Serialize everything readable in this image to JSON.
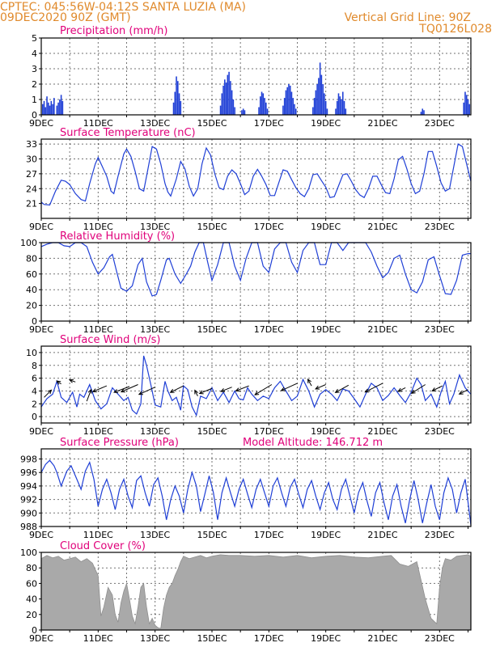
{
  "header": {
    "line1_left": "CPTEC:   045:56W-04:12S   SANTA LUZIA (MA)",
    "line2_left": "09DEC2020 90Z (GMT)",
    "line1_right": "Vertical Grid Line: 90Z",
    "line2_right": "TQ0126L028"
  },
  "colors": {
    "header": "#e08a2c",
    "panel_title": "#e0007a",
    "series": "#1f3fd6",
    "cloud": "#a9a9a9",
    "wind_arrow": "#000000"
  },
  "x_axis": {
    "ticks": [
      "9DEC",
      "11DEC",
      "13DEC",
      "15DEC",
      "17DEC",
      "19DEC",
      "21DEC",
      "23DEC"
    ],
    "start_day": 9,
    "end_day": 24.1
  },
  "chart_data": [
    {
      "id": "precip",
      "type": "bar",
      "title": "Precipitation (mm/h)",
      "ylim": [
        0,
        5
      ],
      "yticks": [
        0,
        1,
        2,
        3,
        4,
        5
      ],
      "grid": true,
      "x_unit": "day of December 2020",
      "x": [
        9.05,
        9.1,
        9.15,
        9.2,
        9.25,
        9.3,
        9.35,
        9.4,
        9.45,
        9.55,
        9.6,
        9.65,
        9.7,
        9.75,
        13.65,
        13.7,
        13.75,
        13.8,
        13.85,
        13.9,
        15.3,
        15.35,
        15.4,
        15.45,
        15.5,
        15.55,
        15.6,
        15.65,
        15.7,
        15.75,
        15.8,
        16.05,
        16.1,
        16.15,
        16.65,
        16.7,
        16.75,
        16.8,
        16.85,
        16.9,
        16.95,
        17.5,
        17.55,
        17.6,
        17.65,
        17.7,
        17.75,
        17.8,
        17.85,
        17.9,
        17.95,
        18.55,
        18.6,
        18.65,
        18.7,
        18.75,
        18.8,
        18.85,
        18.9,
        18.95,
        19.0,
        19.05,
        19.35,
        19.4,
        19.45,
        19.5,
        19.55,
        19.6,
        19.65,
        19.7,
        22.35,
        22.4,
        22.45,
        23.85,
        23.9,
        23.95,
        24.0,
        24.05
      ],
      "values": [
        0.7,
        0.9,
        0.5,
        1.2,
        0.8,
        0.6,
        0.9,
        0.7,
        1.1,
        0.6,
        0.8,
        1.0,
        1.3,
        0.9,
        0.8,
        1.5,
        2.5,
        2.2,
        1.4,
        0.9,
        0.6,
        1.4,
        1.9,
        2.3,
        2.1,
        2.6,
        2.8,
        2.2,
        1.6,
        1.0,
        0.5,
        0.3,
        0.4,
        0.3,
        0.5,
        1.2,
        1.5,
        1.4,
        1.1,
        0.8,
        0.4,
        0.6,
        1.1,
        1.6,
        1.8,
        2.0,
        1.9,
        1.5,
        1.1,
        0.7,
        0.4,
        0.5,
        1.1,
        1.6,
        2.0,
        2.4,
        3.4,
        2.6,
        2.0,
        1.4,
        0.9,
        0.4,
        0.4,
        0.9,
        1.4,
        1.2,
        1.0,
        1.5,
        0.9,
        0.4,
        0.2,
        0.4,
        0.3,
        0.8,
        1.5,
        1.3,
        1.0,
        0.7
      ]
    },
    {
      "id": "temperature",
      "type": "line",
      "title": "Surface Temperature (nC)",
      "ylim": [
        18,
        34
      ],
      "yticks": [
        21,
        24,
        27,
        30,
        33
      ],
      "grid": true,
      "x_unit": "day of December 2020",
      "x": [
        9.0,
        9.1,
        9.3,
        9.5,
        9.7,
        9.85,
        10.0,
        10.2,
        10.4,
        10.55,
        10.7,
        10.9,
        11.0,
        11.3,
        11.45,
        11.55,
        11.7,
        11.9,
        12.0,
        12.15,
        12.3,
        12.45,
        12.6,
        12.75,
        12.9,
        13.05,
        13.2,
        13.35,
        13.45,
        13.55,
        13.75,
        13.9,
        14.05,
        14.2,
        14.35,
        14.5,
        14.65,
        14.8,
        14.95,
        15.1,
        15.25,
        15.4,
        15.55,
        15.7,
        15.85,
        16.0,
        16.15,
        16.3,
        16.45,
        16.6,
        16.75,
        16.9,
        17.05,
        17.2,
        17.35,
        17.5,
        17.65,
        17.8,
        17.95,
        18.1,
        18.25,
        18.4,
        18.55,
        18.7,
        18.85,
        19.0,
        19.15,
        19.3,
        19.45,
        19.6,
        19.75,
        19.9,
        20.05,
        20.2,
        20.35,
        20.5,
        20.65,
        20.8,
        20.95,
        21.1,
        21.25,
        21.4,
        21.55,
        21.7,
        21.85,
        22.0,
        22.15,
        22.3,
        22.45,
        22.6,
        22.75,
        22.9,
        23.05,
        23.2,
        23.35,
        23.5,
        23.65,
        23.8,
        23.95,
        24.1
      ],
      "values": [
        21.3,
        20.8,
        20.7,
        23.5,
        25.7,
        25.5,
        24.8,
        23.0,
        21.8,
        21.5,
        25.0,
        29.0,
        30.3,
        26.5,
        23.5,
        23.0,
        26.5,
        31.0,
        32.0,
        30.5,
        27.5,
        24.0,
        23.5,
        28.0,
        32.5,
        32.0,
        29.0,
        25.0,
        23.3,
        22.5,
        26.0,
        29.5,
        28.0,
        24.5,
        22.5,
        24.0,
        29.0,
        32.2,
        30.8,
        27.0,
        24.2,
        23.8,
        26.5,
        27.8,
        27.0,
        25.0,
        22.8,
        23.5,
        26.5,
        27.9,
        26.5,
        24.8,
        22.6,
        22.6,
        25.2,
        27.8,
        27.5,
        25.8,
        24.2,
        23.0,
        22.4,
        24.0,
        26.8,
        27.0,
        25.6,
        24.3,
        22.2,
        22.4,
        24.6,
        26.8,
        27.0,
        25.5,
        23.8,
        22.7,
        22.2,
        24.0,
        26.5,
        26.5,
        24.8,
        23.2,
        23.0,
        26.0,
        29.8,
        30.5,
        28.0,
        25.0,
        23.0,
        23.5,
        27.0,
        31.5,
        31.5,
        28.5,
        25.2,
        23.5,
        24.0,
        28.5,
        33.0,
        32.5,
        29.0,
        25.5
      ]
    },
    {
      "id": "humidity",
      "type": "line",
      "title": "Relative Humidity (%)",
      "ylim": [
        0,
        100
      ],
      "yticks": [
        0,
        20,
        40,
        60,
        80,
        100
      ],
      "grid": true,
      "x_unit": "day of December 2020",
      "x": [
        9.0,
        9.2,
        9.4,
        9.6,
        9.8,
        10.0,
        10.2,
        10.4,
        10.6,
        10.8,
        11.0,
        11.2,
        11.4,
        11.5,
        11.65,
        11.8,
        12.0,
        12.2,
        12.4,
        12.55,
        12.7,
        12.9,
        13.05,
        13.2,
        13.4,
        13.5,
        13.7,
        13.9,
        14.1,
        14.25,
        14.4,
        14.55,
        14.7,
        14.85,
        15.0,
        15.2,
        15.4,
        15.6,
        15.8,
        16.0,
        16.2,
        16.4,
        16.6,
        16.8,
        17.0,
        17.2,
        17.4,
        17.6,
        17.8,
        18.0,
        18.2,
        18.4,
        18.6,
        18.8,
        19.0,
        19.2,
        19.4,
        19.6,
        19.8,
        20.0,
        20.2,
        20.4,
        20.6,
        20.8,
        21.0,
        21.2,
        21.4,
        21.6,
        21.8,
        22.0,
        22.2,
        22.4,
        22.6,
        22.8,
        23.0,
        23.2,
        23.4,
        23.6,
        23.8,
        24.0,
        24.1
      ],
      "values": [
        95,
        98,
        100,
        100,
        96,
        95,
        100,
        100,
        95,
        75,
        60,
        68,
        82,
        85,
        63,
        42,
        38,
        45,
        72,
        80,
        50,
        32,
        34,
        52,
        78,
        80,
        60,
        48,
        60,
        70,
        88,
        100,
        100,
        75,
        52,
        72,
        100,
        100,
        70,
        52,
        80,
        100,
        100,
        70,
        62,
        92,
        100,
        100,
        75,
        62,
        90,
        100,
        100,
        72,
        72,
        100,
        100,
        90,
        100,
        100,
        100,
        100,
        88,
        70,
        55,
        62,
        80,
        84,
        60,
        40,
        36,
        50,
        78,
        82,
        58,
        35,
        34,
        52,
        84,
        86,
        86
      ]
    },
    {
      "id": "wind",
      "type": "line",
      "title": "Surface Wind (m/s)",
      "ylim": [
        -1,
        11
      ],
      "yticks": [
        0,
        2,
        4,
        6,
        8,
        10
      ],
      "grid": true,
      "x_unit": "day of December 2020",
      "x": [
        9.0,
        9.2,
        9.4,
        9.55,
        9.7,
        9.9,
        10.1,
        10.25,
        10.35,
        10.5,
        10.7,
        10.9,
        11.1,
        11.3,
        11.5,
        11.7,
        11.9,
        12.05,
        12.2,
        12.35,
        12.5,
        12.6,
        12.7,
        12.85,
        13.0,
        13.2,
        13.35,
        13.45,
        13.6,
        13.75,
        13.9,
        14.0,
        14.15,
        14.3,
        14.45,
        14.6,
        14.8,
        15.0,
        15.2,
        15.4,
        15.6,
        15.8,
        15.95,
        16.1,
        16.25,
        16.4,
        16.6,
        16.8,
        17.0,
        17.2,
        17.4,
        17.6,
        17.8,
        18.0,
        18.2,
        18.4,
        18.6,
        18.8,
        19.0,
        19.2,
        19.4,
        19.6,
        19.8,
        20.0,
        20.2,
        20.4,
        20.6,
        20.8,
        21.0,
        21.2,
        21.4,
        21.6,
        21.8,
        22.0,
        22.2,
        22.35,
        22.5,
        22.7,
        22.9,
        23.05,
        23.2,
        23.35,
        23.5,
        23.7,
        23.9,
        24.1
      ],
      "values": [
        1.5,
        2.8,
        3.5,
        5.5,
        3.0,
        2.2,
        3.8,
        1.5,
        3.5,
        3.0,
        5.0,
        2.5,
        1.2,
        2.0,
        4.5,
        3.5,
        2.5,
        3.0,
        1.0,
        0.4,
        2.0,
        9.5,
        8.0,
        5.0,
        1.8,
        1.5,
        5.5,
        4.0,
        2.5,
        3.0,
        1.0,
        4.8,
        4.2,
        1.5,
        0.2,
        3.2,
        2.8,
        4.5,
        2.5,
        3.8,
        2.2,
        4.0,
        2.8,
        2.6,
        4.5,
        3.5,
        2.5,
        3.2,
        2.8,
        4.5,
        5.5,
        4.0,
        2.5,
        3.2,
        5.8,
        4.0,
        1.5,
        3.5,
        4.2,
        3.5,
        2.5,
        4.3,
        4.0,
        2.8,
        1.5,
        3.5,
        5.2,
        4.5,
        2.5,
        3.3,
        4.5,
        3.3,
        2.2,
        3.8,
        6.0,
        5.0,
        2.5,
        3.5,
        1.5,
        3.8,
        5.5,
        2.0,
        3.5,
        6.5,
        4.5,
        3.5
      ],
      "arrows": [
        {
          "x": 9.1,
          "y": 3.0,
          "u": 1.0,
          "v": 1.0
        },
        {
          "x": 9.7,
          "y": 5.1,
          "u": -0.6,
          "v": 0.4
        },
        {
          "x": 10.2,
          "y": 5.4,
          "u": -0.8,
          "v": 0.3
        },
        {
          "x": 10.6,
          "y": 2.4,
          "u": 0.6,
          "v": 1.6
        },
        {
          "x": 11.3,
          "y": 4.8,
          "u": -1.9,
          "v": -0.8
        },
        {
          "x": 12.1,
          "y": 4.7,
          "u": -2.1,
          "v": -0.8
        },
        {
          "x": 12.4,
          "y": 5.0,
          "u": -2.3,
          "v": -1.0
        },
        {
          "x": 13.0,
          "y": 4.6,
          "u": -2.2,
          "v": -1.0
        },
        {
          "x": 14.0,
          "y": 4.8,
          "u": -1.8,
          "v": -0.9
        },
        {
          "x": 14.5,
          "y": 3.2,
          "u": -0.4,
          "v": 0.8
        },
        {
          "x": 15.0,
          "y": 4.4,
          "u": -1.7,
          "v": -0.7
        },
        {
          "x": 15.7,
          "y": 4.6,
          "u": -1.5,
          "v": -0.6
        },
        {
          "x": 16.3,
          "y": 4.8,
          "u": -1.8,
          "v": -0.7
        },
        {
          "x": 17.1,
          "y": 5.0,
          "u": -2.3,
          "v": -1.4
        },
        {
          "x": 18.0,
          "y": 5.2,
          "u": -2.2,
          "v": -1.0
        },
        {
          "x": 18.5,
          "y": 4.8,
          "u": -0.5,
          "v": 0.9
        },
        {
          "x": 19.0,
          "y": 5.0,
          "u": -1.4,
          "v": -0.6
        },
        {
          "x": 19.8,
          "y": 4.9,
          "u": -1.8,
          "v": -1.0
        },
        {
          "x": 21.0,
          "y": 5.2,
          "u": -2.4,
          "v": -1.2
        },
        {
          "x": 21.8,
          "y": 4.5,
          "u": -1.0,
          "v": -0.5
        },
        {
          "x": 22.5,
          "y": 5.0,
          "u": -1.9,
          "v": -1.2
        },
        {
          "x": 23.1,
          "y": 4.8,
          "u": -1.4,
          "v": -0.7
        },
        {
          "x": 24.0,
          "y": 4.2,
          "u": -1.2,
          "v": -0.6
        }
      ]
    },
    {
      "id": "pressure",
      "type": "line",
      "title": "Surface Pressure (hPa)",
      "annotation": "Model Altitude: 146.712 m",
      "ylim": [
        988,
        999.5
      ],
      "yticks": [
        988,
        990,
        992,
        994,
        996,
        998
      ],
      "grid": true,
      "x_unit": "day of December 2020",
      "x": [
        9.0,
        9.15,
        9.3,
        9.45,
        9.55,
        9.7,
        9.9,
        10.05,
        10.25,
        10.4,
        10.55,
        10.7,
        10.85,
        11.0,
        11.15,
        11.3,
        11.45,
        11.6,
        11.75,
        11.9,
        12.05,
        12.2,
        12.35,
        12.5,
        12.65,
        12.8,
        12.95,
        13.1,
        13.25,
        13.4,
        13.55,
        13.7,
        13.85,
        14.0,
        14.15,
        14.3,
        14.45,
        14.6,
        14.75,
        14.9,
        15.05,
        15.2,
        15.35,
        15.5,
        15.65,
        15.8,
        15.95,
        16.1,
        16.25,
        16.4,
        16.55,
        16.7,
        16.85,
        17.0,
        17.15,
        17.3,
        17.45,
        17.6,
        17.75,
        17.9,
        18.05,
        18.2,
        18.35,
        18.5,
        18.65,
        18.8,
        18.95,
        19.1,
        19.25,
        19.4,
        19.55,
        19.7,
        19.85,
        20.0,
        20.15,
        20.3,
        20.45,
        20.6,
        20.75,
        20.9,
        21.05,
        21.2,
        21.35,
        21.5,
        21.65,
        21.8,
        21.95,
        22.1,
        22.25,
        22.4,
        22.55,
        22.7,
        22.85,
        23.0,
        23.15,
        23.3,
        23.45,
        23.6,
        23.75,
        23.9,
        24.1
      ],
      "values": [
        996.0,
        997.2,
        997.8,
        997.0,
        996.0,
        994.0,
        996.2,
        997.0,
        995.0,
        993.5,
        996.2,
        997.5,
        995.0,
        991.0,
        993.5,
        995.0,
        993.0,
        990.5,
        993.5,
        995.0,
        992.5,
        990.8,
        994.8,
        995.5,
        993.0,
        991.0,
        994.2,
        995.2,
        992.5,
        989.0,
        992.0,
        994.0,
        992.5,
        990.0,
        993.5,
        996.0,
        994.0,
        990.2,
        992.8,
        995.5,
        993.0,
        989.0,
        993.0,
        995.2,
        993.0,
        991.0,
        993.5,
        995.0,
        992.8,
        990.8,
        993.5,
        995.0,
        993.0,
        991.0,
        994.0,
        995.2,
        993.0,
        991.0,
        993.8,
        995.0,
        992.8,
        990.8,
        993.5,
        994.8,
        992.5,
        990.5,
        993.0,
        994.5,
        992.0,
        990.5,
        993.5,
        995.0,
        992.5,
        990.0,
        993.0,
        994.5,
        991.8,
        989.5,
        993.0,
        994.5,
        991.5,
        989.0,
        992.5,
        994.2,
        991.0,
        988.5,
        992.0,
        994.8,
        992.0,
        988.5,
        991.5,
        994.2,
        991.0,
        989.0,
        993.0,
        995.2,
        993.5,
        990.0,
        993.0,
        995.0,
        988.2
      ]
    },
    {
      "id": "cloud",
      "type": "area",
      "title": "Cloud Cover (%)",
      "ylim": [
        0,
        100
      ],
      "yticks": [
        0,
        20,
        40,
        60,
        80,
        100
      ],
      "grid": true,
      "x_unit": "day of December 2020",
      "x": [
        9.0,
        9.2,
        9.4,
        9.6,
        9.8,
        10.0,
        10.2,
        10.4,
        10.6,
        10.8,
        11.0,
        11.1,
        11.2,
        11.35,
        11.5,
        11.6,
        11.7,
        11.8,
        11.9,
        12.0,
        12.1,
        12.2,
        12.3,
        12.4,
        12.5,
        12.6,
        12.7,
        12.8,
        12.9,
        13.0,
        13.1,
        13.2,
        13.3,
        13.4,
        13.5,
        13.6,
        13.7,
        13.8,
        13.9,
        14.0,
        14.2,
        14.4,
        14.6,
        14.8,
        15.0,
        15.3,
        15.6,
        16.0,
        16.5,
        17.0,
        17.5,
        18.0,
        18.5,
        19.0,
        19.5,
        20.0,
        20.5,
        21.0,
        21.3,
        21.6,
        21.9,
        22.2,
        22.5,
        22.7,
        22.9,
        23.0,
        23.1,
        23.2,
        23.4,
        23.6,
        23.8,
        24.0,
        24.1
      ],
      "values": [
        92,
        96,
        93,
        95,
        90,
        92,
        94,
        88,
        92,
        86,
        70,
        18,
        30,
        55,
        45,
        20,
        10,
        35,
        50,
        60,
        40,
        18,
        8,
        30,
        55,
        60,
        30,
        8,
        15,
        6,
        3,
        2,
        28,
        45,
        55,
        60,
        70,
        78,
        88,
        95,
        92,
        94,
        96,
        93,
        95,
        97,
        96,
        96,
        95,
        96,
        94,
        96,
        93,
        95,
        96,
        94,
        93,
        95,
        96,
        85,
        82,
        88,
        40,
        15,
        8,
        55,
        80,
        92,
        90,
        95,
        96,
        97,
        95
      ]
    }
  ]
}
